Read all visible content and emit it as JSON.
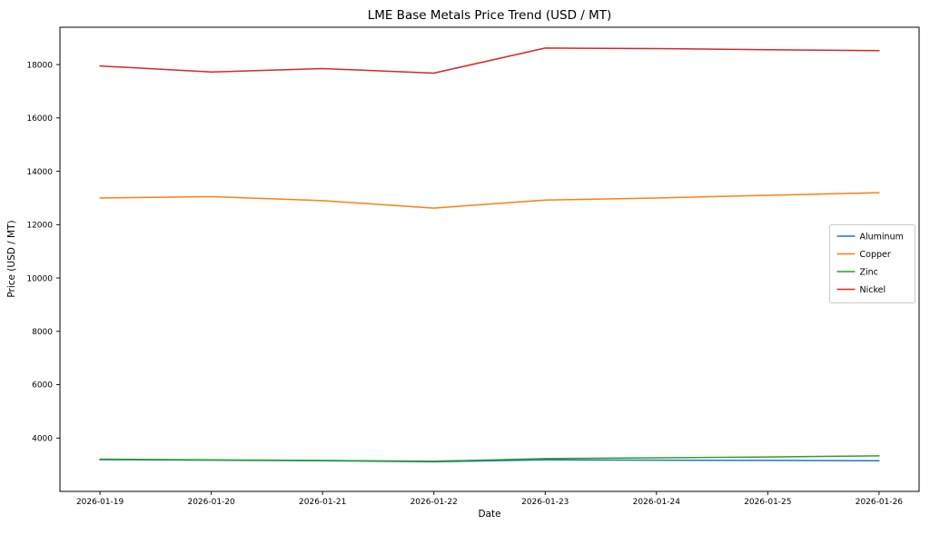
{
  "chart_data": {
    "type": "line",
    "title": "LME Base Metals Price Trend (USD / MT)",
    "xlabel": "Date",
    "ylabel": "Price (USD / MT)",
    "categories": [
      "2026-01-19",
      "2026-01-20",
      "2026-01-21",
      "2026-01-22",
      "2026-01-23",
      "2026-01-24",
      "2026-01-25",
      "2026-01-26"
    ],
    "yticks": [
      4000,
      6000,
      8000,
      10000,
      12000,
      14000,
      16000,
      18000
    ],
    "ylim": [
      2000,
      19400
    ],
    "grid": false,
    "legend_position": "center right",
    "series": [
      {
        "name": "Aluminum",
        "color": "#1f77b4",
        "values": [
          3190,
          3170,
          3150,
          3110,
          3180,
          3170,
          3160,
          3150
        ]
      },
      {
        "name": "Copper",
        "color": "#ff7f0e",
        "values": [
          13000,
          13050,
          12900,
          12620,
          12920,
          13000,
          13100,
          13200
        ]
      },
      {
        "name": "Zinc",
        "color": "#2ca02c",
        "values": [
          3210,
          3185,
          3160,
          3130,
          3230,
          3260,
          3290,
          3330
        ]
      },
      {
        "name": "Nickel",
        "color": "#d62728",
        "values": [
          17950,
          17720,
          17850,
          17680,
          18620,
          18600,
          18560,
          18520
        ]
      }
    ]
  }
}
